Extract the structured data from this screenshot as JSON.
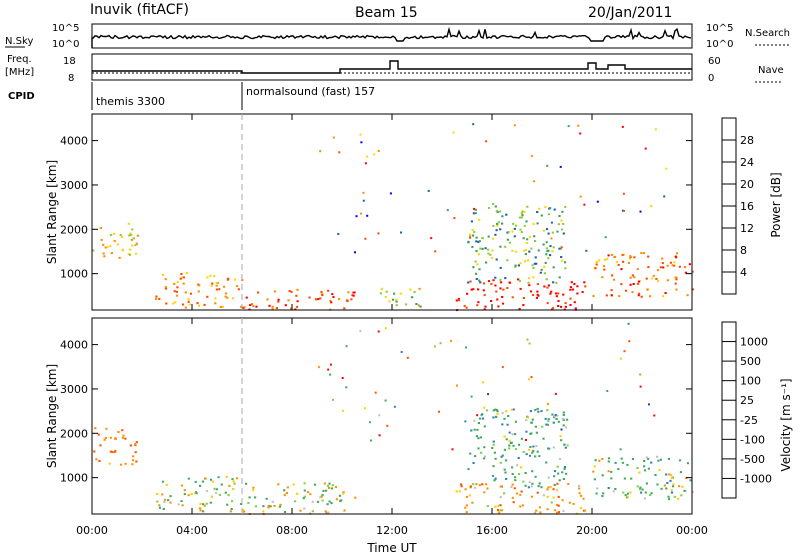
{
  "header": {
    "station": "Inuvik (fitACF)",
    "beam": "Beam 15",
    "date": "20/Jan/2011"
  },
  "summary_panels": {
    "nsky_label": "N.Sky",
    "nsky_ticks": [
      "10^5",
      "10^0"
    ],
    "nsearch_label": "N.Search",
    "freq_label_line1": "Freq.",
    "freq_label_line2": "[MHz]",
    "freq_ticks": [
      "18",
      "8"
    ],
    "nave_label": "Nave",
    "nave_ticks": [
      "60",
      "0"
    ],
    "cpid_label": "CPID",
    "cpid_segments": [
      {
        "name": "themis 3300",
        "start_hour": 0,
        "end_hour": 6
      },
      {
        "name": "normalsound (fast) 157",
        "start_hour": 6,
        "end_hour": 24
      }
    ]
  },
  "chart_data": [
    {
      "type": "heatmap",
      "panel": "power",
      "ylabel": "Slant Range [km]",
      "xlabel": "Time UT",
      "xlim_hours": [
        0,
        24
      ],
      "ylim_km": [
        180,
        4600
      ],
      "x_tick_labels": [
        "00:00",
        "04:00",
        "08:00",
        "12:00",
        "16:00",
        "20:00",
        "00:00"
      ],
      "y_ticks": [
        1000,
        2000,
        3000,
        4000
      ],
      "colorbar": {
        "label": "Power [dB]",
        "ticks": [
          "28",
          "24",
          "20",
          "16",
          "12",
          "8",
          "4"
        ],
        "colors": [
          "#ff0000",
          "#ff4a00",
          "#ff8c00",
          "#ffd400",
          "#8ccc3c",
          "#3e9e5c",
          "#1c5ea8",
          "#0000ff"
        ]
      },
      "scatter_regions": [
        {
          "t0": 0.0,
          "t1": 1.8,
          "r0": 1300,
          "r1": 2150,
          "value_db": 18
        },
        {
          "t0": 2.5,
          "t1": 6.0,
          "r0": 250,
          "r1": 1050,
          "value_db": 22
        },
        {
          "t0": 6.0,
          "t1": 10.5,
          "r0": 200,
          "r1": 700,
          "value_db": 26
        },
        {
          "t0": 11.5,
          "t1": 13.2,
          "r0": 200,
          "r1": 700,
          "value_db": 16
        },
        {
          "t0": 14.5,
          "t1": 19.7,
          "r0": 200,
          "r1": 900,
          "value_db": 30
        },
        {
          "t0": 15.0,
          "t1": 19.0,
          "r0": 800,
          "r1": 2600,
          "value_db": 12
        },
        {
          "t0": 20.0,
          "t1": 24.0,
          "r0": 500,
          "r1": 1500,
          "value_db": 24
        }
      ]
    },
    {
      "type": "heatmap",
      "panel": "velocity",
      "ylabel": "Slant Range [km]",
      "xlabel": "Time UT",
      "xlim_hours": [
        0,
        24
      ],
      "ylim_km": [
        180,
        4600
      ],
      "x_tick_labels": [
        "00:00",
        "04:00",
        "08:00",
        "12:00",
        "16:00",
        "20:00",
        "00:00"
      ],
      "y_ticks": [
        1000,
        2000,
        3000,
        4000
      ],
      "colorbar": {
        "label": "Velocity [m s⁻¹]",
        "ticks": [
          "1000",
          "500",
          "100",
          "25",
          "-25",
          "-100",
          "-500",
          "-1000"
        ],
        "colors": [
          "#1c3ca8",
          "#2e7ec8",
          "#3ea860",
          "#80d040",
          "#c0c0c0",
          "#ffcc00",
          "#ff9000",
          "#ff5000",
          "#ff0000"
        ]
      },
      "scatter_regions": [
        {
          "t0": 0.0,
          "t1": 1.8,
          "r0": 1300,
          "r1": 2150,
          "value_ms": -400
        },
        {
          "t0": 2.5,
          "t1": 6.0,
          "r0": 250,
          "r1": 1050,
          "value_ms": 80
        },
        {
          "t0": 6.0,
          "t1": 10.5,
          "r0": 200,
          "r1": 900,
          "value_ms": 0
        },
        {
          "t0": 14.5,
          "t1": 19.7,
          "r0": 200,
          "r1": 900,
          "value_ms": -300
        },
        {
          "t0": 15.0,
          "t1": 19.0,
          "r0": 800,
          "r1": 2600,
          "value_ms": 300
        },
        {
          "t0": 20.0,
          "t1": 24.0,
          "r0": 500,
          "r1": 1500,
          "value_ms": 200
        }
      ]
    }
  ]
}
